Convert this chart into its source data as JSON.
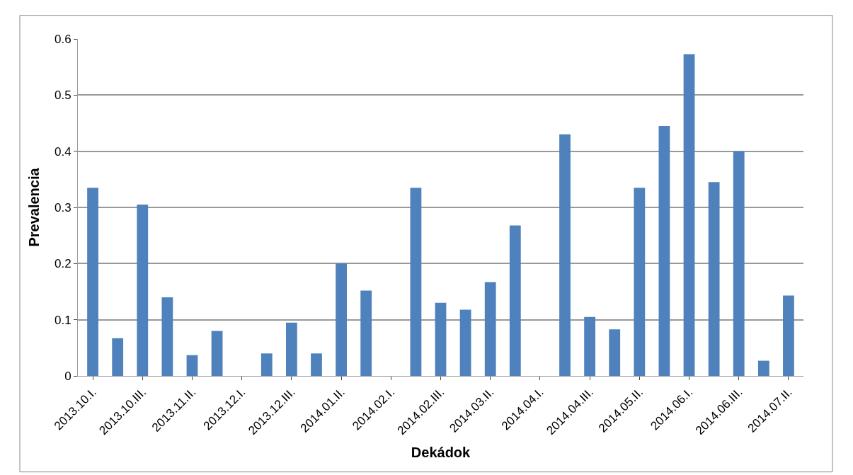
{
  "chart_data": {
    "type": "bar",
    "xlabel": "Dekádok",
    "ylabel": "Prevalencia",
    "categories": [
      "2013.10.I.",
      null,
      "2013.10.III.",
      null,
      "2013.11.II.",
      null,
      "2013.12.I.",
      null,
      "2013.12.III.",
      null,
      "2014.01.II.",
      null,
      "2014.02.I.",
      null,
      "2014.02.III.",
      null,
      "2014.03.II.",
      null,
      "2014.04.I.",
      null,
      "2014.04.III.",
      null,
      "2014.05.II.",
      null,
      "2014.06.I.",
      null,
      "2014.06.III.",
      null,
      "2014.07.II."
    ],
    "values": [
      0.335,
      0.067,
      0.305,
      0.14,
      0.037,
      0.08,
      0,
      0.04,
      0.095,
      0.04,
      0.2,
      0.152,
      0,
      0.335,
      0.13,
      0.118,
      0.167,
      0.268,
      0,
      0.43,
      0.105,
      0.083,
      0.335,
      0.445,
      0.573,
      0.345,
      0.4,
      0.027,
      0.143
    ],
    "color": "#4f81bd",
    "ylim": [
      0,
      0.6
    ],
    "yticks": [
      0,
      0.1,
      0.2,
      0.3,
      0.4,
      0.5,
      0.6
    ],
    "grid": "y"
  }
}
